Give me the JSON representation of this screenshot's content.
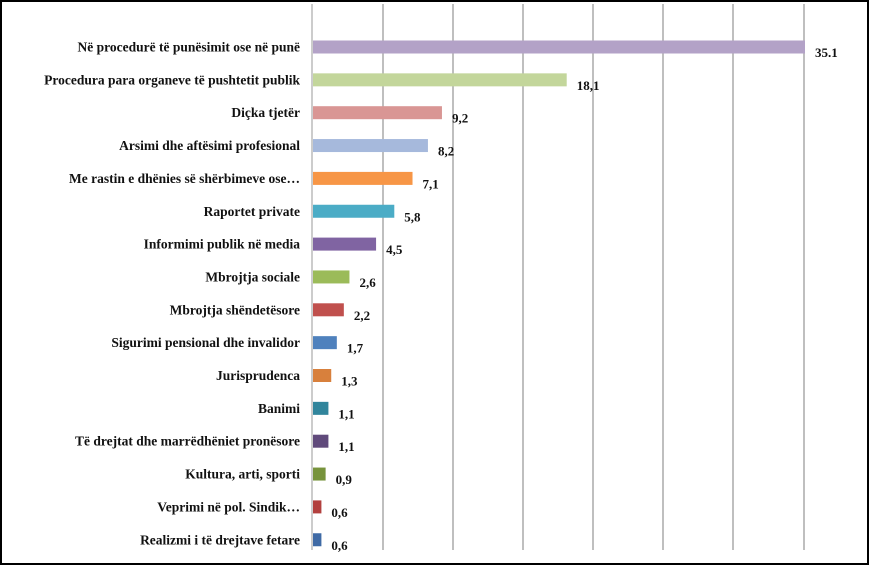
{
  "chart_data": {
    "type": "bar",
    "orientation": "horizontal",
    "title": "",
    "xlabel": "",
    "ylabel": "",
    "xlim": [
      0,
      35.1
    ],
    "grid": true,
    "categories": [
      "Në procedurë të punësimit ose në punë",
      "Procedura para organeve të pushtetit publik",
      "Diçka tjetër",
      "Arsimi dhe aftësimi profesional",
      "Me rastin e dhënies së shërbimeve ose…",
      "Raportet private",
      "Informimi publik në media",
      "Mbrojtja sociale",
      "Mbrojtja shëndetësore",
      "Sigurimi pensional dhe invalidor",
      "Jurisprudenca",
      "Banimi",
      "Të drejtat dhe marrëdhëniet pronësore",
      "Kultura, arti, sporti",
      "Veprimi në pol. Sindik…",
      "Realizmi i të drejtave fetare"
    ],
    "values": [
      35.1,
      18.1,
      9.2,
      8.2,
      7.1,
      5.8,
      4.5,
      2.6,
      2.2,
      1.7,
      1.3,
      1.1,
      1.1,
      0.9,
      0.6,
      0.6
    ],
    "value_labels": [
      "35.1",
      "18,1",
      "9,2",
      "8,2",
      "7,1",
      "5,8",
      "4,5",
      "2,6",
      "2,2",
      "1,7",
      "1,3",
      "1,1",
      "1,1",
      "0,9",
      "0,6",
      "0,6"
    ],
    "colors": [
      "#b3a2c7",
      "#c3d69b",
      "#d99694",
      "#a6b9dc",
      "#f79646",
      "#4bacc6",
      "#8064a2",
      "#9bbb59",
      "#c0504d",
      "#4f81bd",
      "#d8803c",
      "#31859c",
      "#604a7b",
      "#77933c",
      "#b2403e",
      "#3f6aa5"
    ]
  }
}
